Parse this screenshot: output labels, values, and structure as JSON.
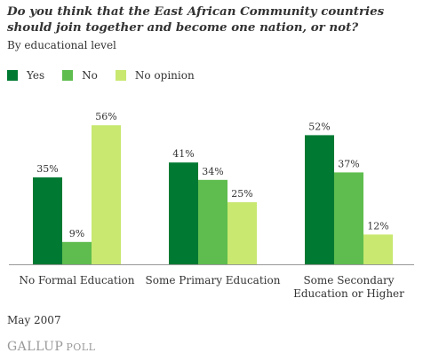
{
  "title": "Do you think that the East African Community countries should join together and become one nation, or not?",
  "subtitle": "By educational level",
  "footer": {
    "date": "May 2007",
    "logo_main": "GALLUP",
    "logo_sub": "POLL"
  },
  "colors": {
    "yes": "#007a33",
    "no": "#5ebd4e",
    "no_opinion": "#c8e870",
    "axis": "#999999"
  },
  "chart_data": {
    "type": "bar",
    "categories": [
      [
        "No Formal Education"
      ],
      [
        "Some Primary Education"
      ],
      [
        "Some Secondary",
        "Education or Higher"
      ]
    ],
    "series": [
      {
        "name": "Yes",
        "values": [
          35,
          41,
          52
        ],
        "labels": [
          "35%",
          "41%",
          "52%"
        ]
      },
      {
        "name": "No",
        "values": [
          9,
          34,
          37
        ],
        "labels": [
          "9%",
          "34%",
          "37%"
        ]
      },
      {
        "name": "No opinion",
        "values": [
          56,
          25,
          12
        ],
        "labels": [
          "56%",
          "25%",
          "12%"
        ]
      }
    ],
    "ylim": [
      0,
      60
    ],
    "grid": false,
    "legend_position": "top-left"
  }
}
